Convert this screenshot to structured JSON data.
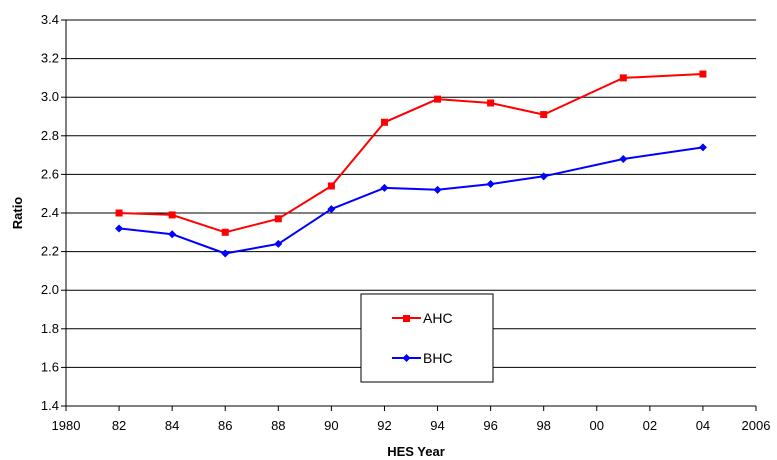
{
  "chart_data": {
    "type": "line",
    "xlabel": "HES Year",
    "ylabel": "Ratio",
    "ylim": [
      1.4,
      3.4
    ],
    "y_ticks": [
      1.4,
      1.6,
      1.8,
      2.0,
      2.2,
      2.4,
      2.6,
      2.8,
      3.0,
      3.2,
      3.4
    ],
    "y_tick_labels": [
      "1.4",
      "1.6",
      "1.8",
      "2.0",
      "2.2",
      "2.4",
      "2.6",
      "2.8",
      "3.0",
      "3.2",
      "3.4"
    ],
    "xlim": [
      1980,
      2006
    ],
    "x_ticks": [
      1980,
      1982,
      1984,
      1986,
      1988,
      1990,
      1992,
      1994,
      1996,
      1998,
      2000,
      2002,
      2004,
      2006
    ],
    "x_tick_labels": [
      "1980",
      "82",
      "84",
      "86",
      "88",
      "90",
      "92",
      "94",
      "96",
      "98",
      "00",
      "02",
      "04",
      "2006"
    ],
    "grid": "horizontal",
    "legend_position": "center-bottom",
    "series": [
      {
        "name": "AHC",
        "color": "#ff0000",
        "marker": "square",
        "x": [
          1982,
          1984,
          1986,
          1988,
          1990,
          1992,
          1994,
          1996,
          1998,
          2001,
          2004
        ],
        "y": [
          2.4,
          2.39,
          2.3,
          2.37,
          2.54,
          2.87,
          2.99,
          2.97,
          2.91,
          3.1,
          3.12
        ]
      },
      {
        "name": "BHC",
        "color": "#0000ff",
        "marker": "diamond",
        "x": [
          1982,
          1984,
          1986,
          1988,
          1990,
          1992,
          1994,
          1996,
          1998,
          2001,
          2004
        ],
        "y": [
          2.32,
          2.29,
          2.19,
          2.24,
          2.42,
          2.53,
          2.52,
          2.55,
          2.59,
          2.68,
          2.74
        ]
      }
    ]
  }
}
